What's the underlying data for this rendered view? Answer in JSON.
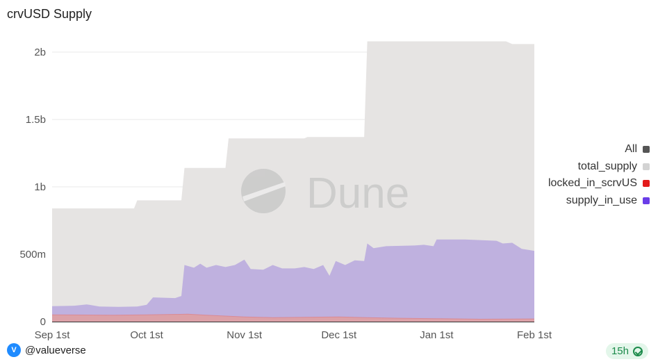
{
  "title": "crvUSD Supply",
  "footer": {
    "user": "@valueverse",
    "avatar_letter": "V",
    "badge": "15h"
  },
  "watermark": "Dune",
  "legend": [
    {
      "label": "All",
      "color": "#555555"
    },
    {
      "label": "total_supply",
      "color": "#d3d3d3"
    },
    {
      "label": "locked_in_scrvUS",
      "color": "#e31b1b"
    },
    {
      "label": "supply_in_use",
      "color": "#6a3de8"
    }
  ],
  "chart_data": {
    "type": "area",
    "x_axis": {
      "type": "date",
      "range": [
        "2024-09-01",
        "2025-02-01"
      ],
      "ticks": [
        "Sep 1st",
        "Oct 1st",
        "Nov 1st",
        "Dec 1st",
        "Jan 1st",
        "Feb 1st"
      ]
    },
    "y_axis": {
      "range": [
        0,
        2000000000
      ],
      "ticks": [
        0,
        500000000,
        1000000000,
        1500000000,
        2000000000
      ],
      "tick_labels": [
        "0",
        "500m",
        "1b",
        "1.5b",
        "2b"
      ]
    },
    "grid": true,
    "legend_placement": "right",
    "series": [
      {
        "name": "total_supply",
        "color": "#e6e4e3",
        "points": [
          [
            "2024-09-01",
            840000000
          ],
          [
            "2024-09-27",
            840000000
          ],
          [
            "2024-09-28",
            900000000
          ],
          [
            "2024-10-12",
            900000000
          ],
          [
            "2024-10-13",
            1140000000
          ],
          [
            "2024-10-26",
            1140000000
          ],
          [
            "2024-10-27",
            1360000000
          ],
          [
            "2024-11-20",
            1360000000
          ],
          [
            "2024-11-21",
            1370000000
          ],
          [
            "2024-12-09",
            1370000000
          ],
          [
            "2024-12-10",
            2080000000
          ],
          [
            "2025-01-23",
            2080000000
          ],
          [
            "2025-01-25",
            2060000000
          ],
          [
            "2025-02-01",
            2060000000
          ]
        ]
      },
      {
        "name": "supply_in_use",
        "color": "#bfb1df",
        "points": [
          [
            "2024-09-01",
            115000000
          ],
          [
            "2024-09-08",
            118000000
          ],
          [
            "2024-09-12",
            128000000
          ],
          [
            "2024-09-16",
            112000000
          ],
          [
            "2024-09-22",
            110000000
          ],
          [
            "2024-09-28",
            112000000
          ],
          [
            "2024-10-01",
            125000000
          ],
          [
            "2024-10-03",
            180000000
          ],
          [
            "2024-10-10",
            175000000
          ],
          [
            "2024-10-12",
            190000000
          ],
          [
            "2024-10-13",
            420000000
          ],
          [
            "2024-10-16",
            400000000
          ],
          [
            "2024-10-18",
            430000000
          ],
          [
            "2024-10-20",
            400000000
          ],
          [
            "2024-10-23",
            420000000
          ],
          [
            "2024-10-26",
            405000000
          ],
          [
            "2024-10-29",
            420000000
          ],
          [
            "2024-11-01",
            460000000
          ],
          [
            "2024-11-03",
            390000000
          ],
          [
            "2024-11-07",
            385000000
          ],
          [
            "2024-11-10",
            420000000
          ],
          [
            "2024-11-13",
            395000000
          ],
          [
            "2024-11-17",
            395000000
          ],
          [
            "2024-11-20",
            405000000
          ],
          [
            "2024-11-23",
            390000000
          ],
          [
            "2024-11-26",
            420000000
          ],
          [
            "2024-11-28",
            340000000
          ],
          [
            "2024-11-30",
            450000000
          ],
          [
            "2024-12-03",
            420000000
          ],
          [
            "2024-12-06",
            455000000
          ],
          [
            "2024-12-09",
            450000000
          ],
          [
            "2024-12-10",
            580000000
          ],
          [
            "2024-12-12",
            545000000
          ],
          [
            "2024-12-16",
            560000000
          ],
          [
            "2024-12-25",
            565000000
          ],
          [
            "2024-12-28",
            570000000
          ],
          [
            "2024-12-31",
            560000000
          ],
          [
            "2025-01-01",
            610000000
          ],
          [
            "2025-01-10",
            610000000
          ],
          [
            "2025-01-20",
            600000000
          ],
          [
            "2025-01-22",
            580000000
          ],
          [
            "2025-01-25",
            585000000
          ],
          [
            "2025-01-28",
            540000000
          ],
          [
            "2025-02-01",
            525000000
          ]
        ]
      },
      {
        "name": "locked_in_scrvUS",
        "color": "#dca1a8",
        "points": [
          [
            "2024-09-01",
            50000000
          ],
          [
            "2024-09-20",
            48000000
          ],
          [
            "2024-10-01",
            50000000
          ],
          [
            "2024-10-14",
            55000000
          ],
          [
            "2024-10-20",
            48000000
          ],
          [
            "2024-11-01",
            35000000
          ],
          [
            "2024-11-10",
            30000000
          ],
          [
            "2024-11-20",
            32000000
          ],
          [
            "2024-12-01",
            35000000
          ],
          [
            "2024-12-10",
            30000000
          ],
          [
            "2024-12-20",
            25000000
          ],
          [
            "2025-01-01",
            22000000
          ],
          [
            "2025-01-15",
            18000000
          ],
          [
            "2025-02-01",
            20000000
          ]
        ]
      }
    ]
  }
}
